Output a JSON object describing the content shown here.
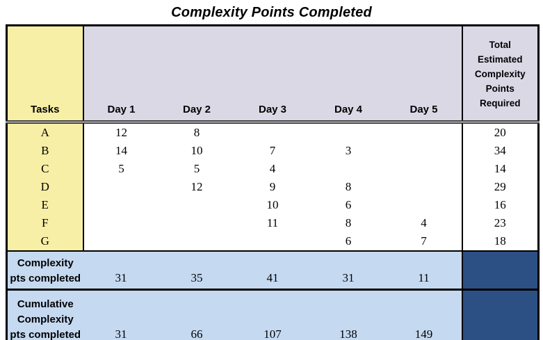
{
  "title": "Complexity Points Completed",
  "colors": {
    "tasks_column_bg": "#F8EFA6",
    "header_days_bg": "#DBD8E6",
    "summary_row_bg": "#C5D9F1",
    "summary_total_bg": "#2C5083",
    "border": "#000000"
  },
  "table": {
    "header": {
      "tasks_label": "Tasks",
      "days": [
        "Day 1",
        "Day 2",
        "Day 3",
        "Day 4",
        "Day 5"
      ],
      "total_lines": [
        "Total",
        "Estimated",
        "Complexity",
        "Points",
        "Required"
      ]
    },
    "rows": [
      {
        "task": "A",
        "days": [
          "12",
          "8",
          "",
          "",
          ""
        ],
        "total": "20"
      },
      {
        "task": "B",
        "days": [
          "14",
          "10",
          "7",
          "3",
          ""
        ],
        "total": "34"
      },
      {
        "task": "C",
        "days": [
          "5",
          "5",
          "4",
          "",
          ""
        ],
        "total": "14"
      },
      {
        "task": "D",
        "days": [
          "",
          "12",
          "9",
          "8",
          ""
        ],
        "total": "29"
      },
      {
        "task": "E",
        "days": [
          "",
          "",
          "10",
          "6",
          ""
        ],
        "total": "16"
      },
      {
        "task": "F",
        "days": [
          "",
          "",
          "11",
          "8",
          "4"
        ],
        "total": "23"
      },
      {
        "task": "G",
        "days": [
          "",
          "",
          "",
          "6",
          "7"
        ],
        "total": "18"
      }
    ],
    "summary": {
      "completed": {
        "label_lines": [
          "Complexity",
          "pts completed"
        ],
        "values": [
          "31",
          "35",
          "41",
          "31",
          "11"
        ]
      },
      "cumulative": {
        "label_lines": [
          "Cumulative",
          "Complexity",
          "pts completed"
        ],
        "values": [
          "31",
          "66",
          "107",
          "138",
          "149"
        ]
      }
    }
  },
  "chart_data": {
    "type": "table",
    "title": "Complexity Points Completed",
    "columns": [
      "Tasks",
      "Day 1",
      "Day 2",
      "Day 3",
      "Day 4",
      "Day 5",
      "Total Estimated Complexity Points Required"
    ],
    "rows": [
      [
        "A",
        12,
        8,
        null,
        null,
        null,
        20
      ],
      [
        "B",
        14,
        10,
        7,
        3,
        null,
        34
      ],
      [
        "C",
        5,
        5,
        4,
        null,
        null,
        14
      ],
      [
        "D",
        null,
        12,
        9,
        8,
        null,
        29
      ],
      [
        "E",
        null,
        null,
        10,
        6,
        null,
        16
      ],
      [
        "F",
        null,
        null,
        11,
        8,
        4,
        23
      ],
      [
        "G",
        null,
        null,
        null,
        6,
        7,
        18
      ]
    ],
    "summary_rows": [
      [
        "Complexity pts completed",
        31,
        35,
        41,
        31,
        11,
        null
      ],
      [
        "Cumulative Complexity pts completed",
        31,
        66,
        107,
        138,
        149,
        null
      ]
    ]
  }
}
